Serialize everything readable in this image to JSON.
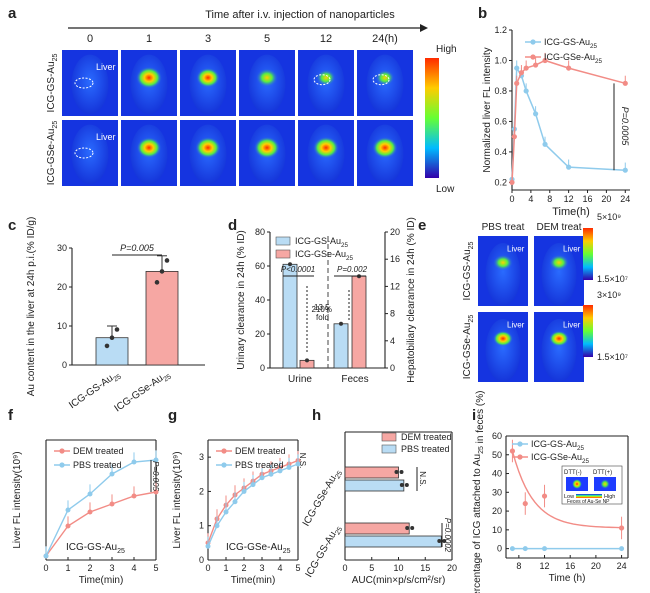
{
  "colors": {
    "blue": "#8fcbec",
    "blueDark": "#5aaee0",
    "red": "#f28c86",
    "redDark": "#e0605a",
    "bar_blue": "#b9dcf4",
    "bar_red": "#f6a7a3"
  },
  "panel_labels": [
    "a",
    "b",
    "c",
    "d",
    "e",
    "f",
    "g",
    "h",
    "i"
  ],
  "panel_a": {
    "title": "Time after i.v. injection of nanoparticles",
    "time_labels": [
      "0",
      "1",
      "3",
      "5",
      "12",
      "24(h)"
    ],
    "row_labels": [
      "ICG-GS-Au",
      "ICG-GSe-Au"
    ],
    "row_sub": "25",
    "liver_label": "Liver",
    "scale_high": "High",
    "scale_low": "Low"
  },
  "panel_e": {
    "col_labels": [
      "PBS treat",
      "DEM treat"
    ],
    "row_labels": [
      "ICG-GS-Au",
      "ICG-GSe-Au"
    ],
    "row_sub": "25",
    "liver_label": "Liver",
    "scale_top": [
      "5×10⁹",
      "3×10⁹"
    ],
    "scale_bottom": [
      "1.5×10⁷",
      "1.5×10⁷"
    ]
  },
  "chart_data": [
    {
      "panel": "b",
      "type": "line",
      "xlabel": "Time(h)",
      "ylabel": "Normalized liver FL intensity",
      "xlim": [
        0,
        25
      ],
      "ylim": [
        0.15,
        1.2
      ],
      "xticks": [
        "0",
        "4",
        "8",
        "12",
        "16",
        "20",
        "24"
      ],
      "yticks": [
        "0.2",
        "0.4",
        "0.6",
        "0.8",
        "1.0",
        "1.2"
      ],
      "legend": [
        "ICG-GS-Au25",
        "ICG-GSe-Au25"
      ],
      "series": [
        {
          "name": "ICG-GS-Au25",
          "x": [
            0,
            0.5,
            1,
            2,
            3,
            5,
            7,
            12,
            24
          ],
          "y": [
            0.22,
            0.55,
            0.95,
            0.9,
            0.8,
            0.65,
            0.45,
            0.3,
            0.28
          ]
        },
        {
          "name": "ICG-GSe-Au25",
          "x": [
            0,
            0.5,
            1,
            2,
            3,
            5,
            7,
            12,
            24
          ],
          "y": [
            0.2,
            0.5,
            0.85,
            0.92,
            0.95,
            0.97,
            1.0,
            0.95,
            0.85
          ]
        }
      ],
      "annotation": "P=0.0005"
    },
    {
      "panel": "c",
      "type": "bar",
      "ylabel": "Au content in the liver at 24h p.i.(% ID/g)",
      "categories": [
        "ICG-GS-Au25",
        "ICG-GSe-Au25"
      ],
      "values": [
        7,
        24
      ],
      "errors": [
        3,
        4
      ],
      "ylim": [
        0,
        30
      ],
      "yticks": [
        "0",
        "10",
        "20",
        "30"
      ],
      "annotation": "P=0.005"
    },
    {
      "panel": "d",
      "type": "bar",
      "ylabel_left": "Urinary clearance in 24h (% ID)",
      "ylabel_right": "Hepatobiliary clearance in 24h (% ID)",
      "categories": [
        "Urine",
        "Feces"
      ],
      "ylim_left": [
        0,
        80
      ],
      "ylim_right": [
        0,
        20
      ],
      "yticks_left": [
        "0",
        "20",
        "40",
        "60",
        "80"
      ],
      "yticks_right": [
        "0",
        "4",
        "8",
        "12",
        "16",
        "20"
      ],
      "legend": [
        "ICG-GS-Au25",
        "ICG-GSe-Au25"
      ],
      "series": [
        {
          "name": "ICG-GS-Au25",
          "values": [
            61,
            26
          ]
        },
        {
          "name": "ICG-GSe-Au25",
          "values": [
            4.5,
            54
          ]
        }
      ],
      "annotations": [
        "P<0.0001",
        "13.5 fold",
        "P=0.002",
        "210%"
      ]
    },
    {
      "panel": "f",
      "type": "line",
      "xlabel": "Time(min)",
      "ylabel": "Liver FL intensity(10⁹)",
      "xlim": [
        0,
        5
      ],
      "ylim": [
        0,
        6
      ],
      "xticks": [
        "0",
        "1",
        "2",
        "3",
        "4",
        "5"
      ],
      "legend": [
        "DEM treated",
        "PBS treated"
      ],
      "series": [
        {
          "name": "DEM treated",
          "x": [
            0,
            1,
            2,
            3,
            4,
            5
          ],
          "y": [
            0.2,
            1.7,
            2.4,
            2.8,
            3.2,
            3.4
          ]
        },
        {
          "name": "PBS treated",
          "x": [
            0,
            1,
            2,
            3,
            4,
            5
          ],
          "y": [
            0.2,
            2.5,
            3.3,
            4.3,
            4.9,
            5.0
          ]
        }
      ],
      "note": "ICG-GS-Au25",
      "annotation": "P=0.005"
    },
    {
      "panel": "g",
      "type": "line",
      "xlabel": "Time(min)",
      "ylabel": "Liver FL intensity(10⁹)",
      "xlim": [
        0,
        5
      ],
      "ylim": [
        0,
        3.5
      ],
      "xticks": [
        "0",
        "1",
        "2",
        "3",
        "4",
        "5"
      ],
      "yticks": [
        "0",
        "1",
        "2",
        "3"
      ],
      "legend": [
        "DEM treated",
        "PBS treated"
      ],
      "series": [
        {
          "name": "DEM treated",
          "x": [
            0,
            0.5,
            1,
            1.5,
            2,
            2.5,
            3,
            3.5,
            4,
            4.5,
            5
          ],
          "y": [
            0.5,
            1.2,
            1.6,
            1.9,
            2.1,
            2.3,
            2.5,
            2.6,
            2.7,
            2.8,
            2.9
          ]
        },
        {
          "name": "PBS treated",
          "x": [
            0,
            0.5,
            1,
            1.5,
            2,
            2.5,
            3,
            3.5,
            4,
            4.5,
            5
          ],
          "y": [
            0.4,
            1.0,
            1.4,
            1.7,
            2.0,
            2.2,
            2.4,
            2.5,
            2.6,
            2.7,
            2.8
          ]
        }
      ],
      "note": "ICG-GSe-Au25",
      "annotation": "N.S."
    },
    {
      "panel": "h",
      "type": "bar",
      "xlabel": "AUC(min×p/s/cm²/sr)",
      "categories": [
        "ICG-GSe-Au25",
        "ICG-GS-Au25"
      ],
      "xlim": [
        0,
        20
      ],
      "xticks": [
        "0",
        "5",
        "10",
        "15",
        "20"
      ],
      "legend": [
        "DEM treated",
        "PBS treated"
      ],
      "series": [
        {
          "name": "DEM treated",
          "values": [
            10,
            12
          ]
        },
        {
          "name": "PBS treated",
          "values": [
            11,
            18
          ]
        }
      ],
      "annotations": [
        "N.S.",
        "P=0.0002"
      ]
    },
    {
      "panel": "i",
      "type": "line",
      "xlabel": "Time (h)",
      "ylabel": "Percentage of ICG attached to Au25 in feces (%)",
      "xlim": [
        6,
        25
      ],
      "ylim": [
        -5,
        60
      ],
      "xticks": [
        "8",
        "12",
        "16",
        "20",
        "24"
      ],
      "yticks": [
        "0",
        "10",
        "20",
        "30",
        "40",
        "50",
        "60"
      ],
      "legend": [
        "ICG-GS-Au25",
        "ICG-GSe-Au25"
      ],
      "series": [
        {
          "name": "ICG-GS-Au25",
          "x": [
            7,
            9,
            12,
            24
          ],
          "y": [
            0,
            0,
            0,
            0
          ]
        },
        {
          "name": "ICG-GSe-Au25",
          "x": [
            7,
            9,
            12,
            24
          ],
          "y": [
            52,
            24,
            28,
            11
          ]
        }
      ],
      "inset": {
        "labels": [
          "DTT(-)",
          "DTT(+)"
        ],
        "scale": [
          "Low",
          "High"
        ],
        "caption": "Feces of Au-Se NP"
      }
    }
  ]
}
